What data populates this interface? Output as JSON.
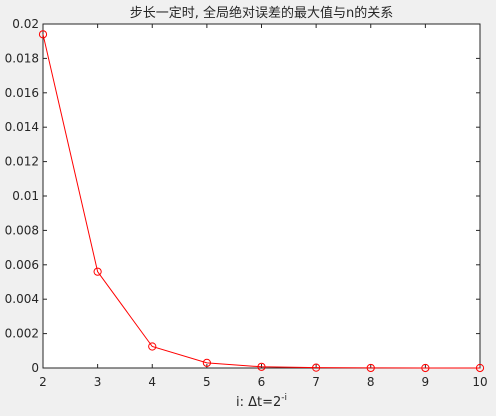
{
  "chart_data": {
    "type": "line",
    "title": "步长一定时, 全局绝对误差的最大值与n的关系",
    "xlabel_main": "i: Δt=2",
    "xlabel_sup": "-i",
    "ylabel": "",
    "xlim": [
      2,
      10
    ],
    "ylim": [
      0,
      0.02
    ],
    "grid": false,
    "x_ticks": [
      "2",
      "3",
      "4",
      "5",
      "6",
      "7",
      "8",
      "9",
      "10"
    ],
    "y_ticks": [
      "0",
      "0.002",
      "0.004",
      "0.006",
      "0.008",
      "0.01",
      "0.012",
      "0.014",
      "0.016",
      "0.018",
      "0.02"
    ],
    "series": [
      {
        "color": "#ff0000",
        "marker": "circle",
        "x": [
          2,
          3,
          4,
          5,
          6,
          7,
          8,
          9,
          10
        ],
        "y": [
          0.0194,
          0.0056,
          0.00125,
          0.0003,
          7e-05,
          2e-05,
          5e-06,
          1e-06,
          3e-07
        ]
      }
    ]
  }
}
